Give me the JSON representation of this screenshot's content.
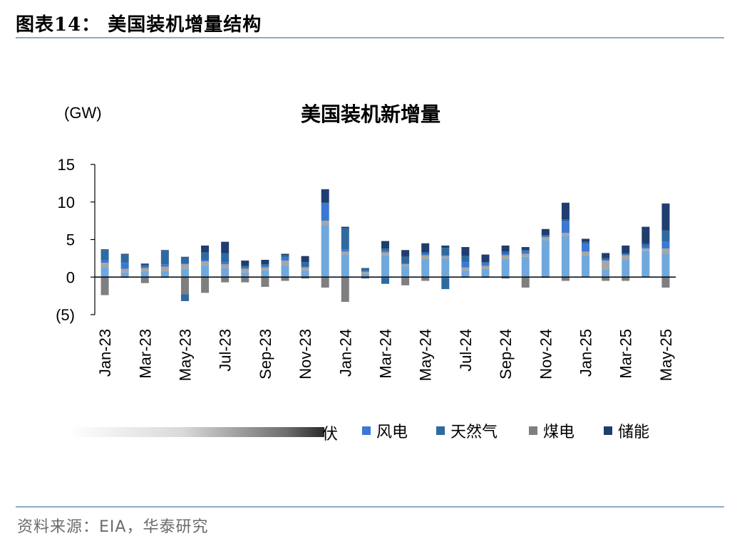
{
  "figure": {
    "heading": "图表14：  美国装机增量结构",
    "source": "资料来源：EIA，华泰研究",
    "legend_fragment": "伏"
  },
  "colors": {
    "solar": "#6fa8dc",
    "wind": "#3a78d4",
    "gas": "#2e6aa0",
    "coal": "#7f7f7f",
    "storage": "#1f3d6e",
    "misc": "#a6a6a6"
  },
  "chart_data": {
    "type": "bar",
    "stacked": true,
    "title": "美国装机新增量",
    "unit_label": "(GW)",
    "ylim": [
      -5,
      15
    ],
    "yticks": [
      15,
      10,
      5,
      0,
      -5
    ],
    "ytick_labels": [
      "15",
      "10",
      "5",
      "0",
      "(5)"
    ],
    "categories": [
      "Jan-23",
      "Feb-23",
      "Mar-23",
      "Apr-23",
      "May-23",
      "Jun-23",
      "Jul-23",
      "Aug-23",
      "Sep-23",
      "Oct-23",
      "Nov-23",
      "Dec-23",
      "Jan-24",
      "Feb-24",
      "Mar-24",
      "Apr-24",
      "May-24",
      "Jun-24",
      "Jul-24",
      "Aug-24",
      "Sep-24",
      "Oct-24",
      "Nov-24",
      "Dec-24",
      "Jan-25",
      "Feb-25",
      "Mar-25",
      "Apr-25",
      "May-25"
    ],
    "xtick_labels": [
      "Jan-23",
      "Mar-23",
      "May-23",
      "Jul-23",
      "Sep-23",
      "Nov-23",
      "Jan-24",
      "Mar-24",
      "May-24",
      "Jul-24",
      "Sep-24",
      "Nov-24",
      "Jan-25",
      "Mar-25",
      "May-25"
    ],
    "series": [
      {
        "key": "solar",
        "name": "光伏",
        "color": "#6fa8dc",
        "values": [
          1.3,
          0.6,
          0.8,
          0.8,
          1.1,
          1.5,
          1.2,
          0.6,
          0.9,
          1.6,
          0.9,
          6.9,
          3.0,
          0.4,
          2.9,
          1.4,
          2.4,
          2.5,
          0.9,
          1.1,
          2.4,
          2.7,
          4.9,
          5.5,
          2.9,
          1.0,
          2.3,
          3.5,
          3.1
        ]
      },
      {
        "key": "misc",
        "name": "",
        "color": "#a6a6a6",
        "values": [
          0.6,
          0.5,
          0.4,
          0.6,
          0.6,
          0.6,
          0.5,
          0.5,
          0.4,
          0.6,
          0.4,
          0.6,
          0.4,
          0.3,
          0.4,
          0.3,
          0.5,
          0.3,
          0.4,
          0.4,
          0.5,
          0.4,
          0.4,
          0.4,
          0.5,
          1.2,
          0.6,
          0.3,
          0.7
        ]
      },
      {
        "key": "wind",
        "name": "风电",
        "color": "#3a78d4",
        "values": [
          0.4,
          0.8,
          0.2,
          0.3,
          0.1,
          0.2,
          0.3,
          0.2,
          0.2,
          0.4,
          0.1,
          2.3,
          0.3,
          0.1,
          0.2,
          0.1,
          0.2,
          0.1,
          0.7,
          0.3,
          0.2,
          0.3,
          0.1,
          1.5,
          1.0,
          0.1,
          0.1,
          0.3,
          0.9
        ]
      },
      {
        "key": "gas",
        "name": "天然气",
        "color": "#2e6aa0",
        "values": [
          1.3,
          1.1,
          0.2,
          1.8,
          0.8,
          1.0,
          1.2,
          0.2,
          0.2,
          0.3,
          0.6,
          0.1,
          2.8,
          0.3,
          0.3,
          0.9,
          0.2,
          1.0,
          0.8,
          0.2,
          0.3,
          0.2,
          0.2,
          0.3,
          0.3,
          0.2,
          0.2,
          0.3,
          1.5
        ]
      },
      {
        "key": "storage",
        "name": "储能",
        "color": "#1f3d6e",
        "values": [
          0.1,
          0.1,
          0.2,
          0.1,
          0.1,
          0.9,
          1.5,
          0.7,
          0.6,
          0.2,
          0.8,
          1.8,
          0.2,
          0.1,
          1.0,
          0.9,
          1.2,
          0.3,
          1.2,
          1.0,
          0.8,
          0.4,
          0.8,
          2.2,
          0.4,
          0.7,
          1.0,
          2.3,
          3.6
        ]
      },
      {
        "key": "coal",
        "name": "煤电",
        "color": "#7f7f7f",
        "values": [
          -2.4,
          -0.1,
          -0.8,
          -0.1,
          -2.3,
          -2.1,
          -0.7,
          -0.7,
          -1.3,
          -0.5,
          -0.2,
          -1.4,
          -3.3,
          -0.2,
          -0.1,
          -1.1,
          -0.5,
          -0.1,
          -0.1,
          -0.1,
          -0.2,
          -1.4,
          -0.1,
          -0.5,
          0,
          -0.5,
          -0.5,
          0,
          -1.4
        ]
      },
      {
        "key": "neg_other",
        "name": "",
        "color": "#2e6aa0",
        "values": [
          0,
          0,
          0,
          0,
          -0.9,
          0,
          0,
          0,
          0,
          0,
          0,
          0,
          0,
          0,
          -0.8,
          0,
          0,
          -1.5,
          0,
          0,
          0,
          0,
          0,
          0,
          0,
          0,
          0,
          0,
          0
        ]
      }
    ],
    "legend": [
      {
        "key": "wind",
        "label": "风电"
      },
      {
        "key": "gas",
        "label": "天然气"
      },
      {
        "key": "coal",
        "label": "煤电"
      },
      {
        "key": "storage",
        "label": "储能"
      }
    ],
    "legend_position": "bottom"
  }
}
